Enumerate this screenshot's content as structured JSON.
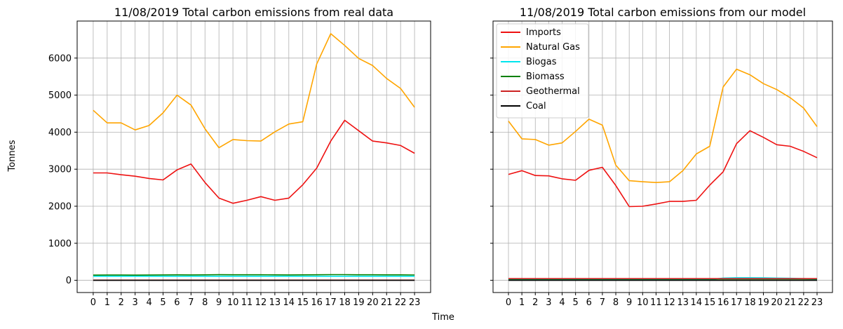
{
  "figure": {
    "ylabel": "Tonnes",
    "xlabel": "Time"
  },
  "chart_data": [
    {
      "type": "line",
      "title": "11/08/2019 Total carbon emissions from real data",
      "xlabel": "",
      "ylabel": "",
      "x": [
        0,
        1,
        2,
        3,
        4,
        5,
        6,
        7,
        8,
        9,
        10,
        11,
        12,
        13,
        14,
        15,
        16,
        17,
        18,
        19,
        20,
        21,
        22,
        23
      ],
      "xticks": [
        "0",
        "1",
        "2",
        "3",
        "4",
        "5",
        "6",
        "7",
        "8",
        "9",
        "10",
        "11",
        "12",
        "13",
        "14",
        "15",
        "16",
        "17",
        "18",
        "19",
        "20",
        "21",
        "22",
        "23"
      ],
      "xlim": [
        -1.15,
        24.15
      ],
      "ylim": [
        -330,
        7000
      ],
      "yticks": [
        0,
        1000,
        2000,
        3000,
        4000,
        5000,
        6000
      ],
      "ytick_labels": [
        "0",
        "1000",
        "2000",
        "3000",
        "4000",
        "5000",
        "6000"
      ],
      "grid": true,
      "series": [
        {
          "name": "Imports",
          "color": "#ee1111",
          "values": [
            2900,
            2900,
            2850,
            2810,
            2750,
            2710,
            2980,
            3140,
            2640,
            2220,
            2080,
            2160,
            2260,
            2160,
            2220,
            2580,
            3030,
            3760,
            4320,
            4040,
            3760,
            3710,
            3640,
            3430
          ]
        },
        {
          "name": "Natural Gas",
          "color": "#ffa500",
          "values": [
            4590,
            4250,
            4250,
            4060,
            4180,
            4520,
            5000,
            4730,
            4090,
            3580,
            3800,
            3770,
            3760,
            4010,
            4220,
            4280,
            5840,
            6660,
            6340,
            5990,
            5800,
            5450,
            5180,
            4670
          ]
        },
        {
          "name": "Biogas",
          "color": "#00e5ee",
          "values": [
            110,
            110,
            110,
            110,
            110,
            110,
            110,
            110,
            110,
            110,
            110,
            110,
            110,
            110,
            110,
            110,
            110,
            110,
            110,
            110,
            110,
            110,
            110,
            110
          ]
        },
        {
          "name": "Biomass",
          "color": "#008000",
          "values": [
            140,
            142,
            142,
            140,
            142,
            145,
            148,
            146,
            148,
            152,
            150,
            150,
            150,
            148,
            146,
            148,
            150,
            153,
            153,
            150,
            150,
            148,
            147,
            144
          ]
        },
        {
          "name": "Geothermal",
          "color": "#cc2222",
          "values": [
            5,
            5,
            5,
            5,
            5,
            5,
            5,
            5,
            5,
            5,
            5,
            5,
            5,
            5,
            5,
            5,
            5,
            5,
            5,
            5,
            5,
            5,
            5,
            5
          ]
        },
        {
          "name": "Coal",
          "color": "#000000",
          "values": [
            0,
            0,
            0,
            0,
            0,
            0,
            0,
            0,
            0,
            0,
            0,
            0,
            0,
            0,
            0,
            0,
            0,
            0,
            0,
            0,
            0,
            0,
            0,
            0
          ]
        }
      ]
    },
    {
      "type": "line",
      "title": "11/08/2019 Total carbon emissions from our model",
      "xlabel": "",
      "ylabel": "",
      "x": [
        0,
        1,
        2,
        3,
        4,
        5,
        6,
        7,
        8,
        9,
        10,
        11,
        12,
        13,
        14,
        15,
        16,
        17,
        18,
        19,
        20,
        21,
        22,
        23
      ],
      "xticks": [
        "0",
        "1",
        "2",
        "3",
        "4",
        "5",
        "6",
        "7",
        "8",
        "9",
        "10",
        "11",
        "12",
        "13",
        "14",
        "15",
        "16",
        "17",
        "18",
        "19",
        "20",
        "21",
        "22",
        "23"
      ],
      "xlim": [
        -1.15,
        24.15
      ],
      "ylim": [
        -330,
        7000
      ],
      "yticks": [
        0,
        1000,
        2000,
        3000,
        4000,
        5000,
        6000
      ],
      "grid": true,
      "legend_position": "top-left",
      "series": [
        {
          "name": "Imports",
          "color": "#ee1111",
          "values": [
            2860,
            2960,
            2830,
            2820,
            2740,
            2700,
            2970,
            3050,
            2560,
            1990,
            2000,
            2060,
            2130,
            2130,
            2160,
            2570,
            2930,
            3690,
            4040,
            3860,
            3660,
            3620,
            3480,
            3310
          ]
        },
        {
          "name": "Natural Gas",
          "color": "#ffa500",
          "values": [
            4300,
            3820,
            3800,
            3650,
            3710,
            4020,
            4350,
            4190,
            3110,
            2690,
            2660,
            2640,
            2660,
            2960,
            3410,
            3620,
            5220,
            5700,
            5550,
            5310,
            5150,
            4930,
            4650,
            4150
          ]
        },
        {
          "name": "Biogas",
          "color": "#00e5ee",
          "values": [
            20,
            20,
            20,
            20,
            20,
            20,
            20,
            20,
            20,
            20,
            20,
            20,
            20,
            20,
            20,
            20,
            60,
            70,
            70,
            65,
            60,
            55,
            45,
            35
          ]
        },
        {
          "name": "Biomass",
          "color": "#008000",
          "values": [
            10,
            10,
            10,
            10,
            10,
            10,
            10,
            10,
            10,
            10,
            10,
            10,
            10,
            10,
            10,
            10,
            10,
            10,
            10,
            10,
            10,
            10,
            10,
            10
          ]
        },
        {
          "name": "Geothermal",
          "color": "#cc2222",
          "values": [
            45,
            45,
            45,
            45,
            45,
            45,
            45,
            45,
            45,
            45,
            45,
            45,
            45,
            45,
            45,
            45,
            45,
            45,
            45,
            45,
            45,
            45,
            45,
            45
          ]
        },
        {
          "name": "Coal",
          "color": "#000000",
          "values": [
            0,
            0,
            0,
            0,
            0,
            0,
            0,
            0,
            0,
            0,
            0,
            0,
            0,
            0,
            0,
            0,
            0,
            0,
            0,
            0,
            0,
            0,
            0,
            0
          ]
        }
      ]
    }
  ]
}
